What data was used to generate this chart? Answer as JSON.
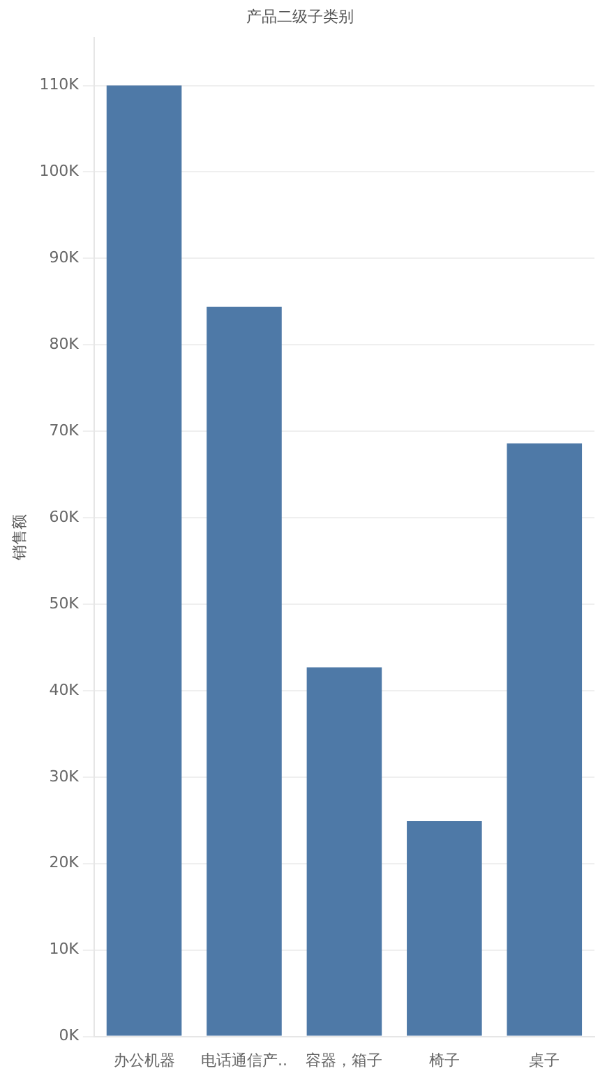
{
  "chart_data": {
    "type": "bar",
    "title": "产品二级子类别",
    "ylabel": "销售额",
    "categories": [
      "办公机器",
      "电话通信产..",
      "容器，箱子",
      "椅子",
      "桌子"
    ],
    "values": [
      110000,
      84400,
      42700,
      24900,
      68600
    ],
    "color": "#4e79a7",
    "ylim": [
      0,
      115500
    ],
    "yticks": [
      {
        "value": 0,
        "label": "0K"
      },
      {
        "value": 10000,
        "label": "10K"
      },
      {
        "value": 20000,
        "label": "20K"
      },
      {
        "value": 30000,
        "label": "30K"
      },
      {
        "value": 40000,
        "label": "40K"
      },
      {
        "value": 50000,
        "label": "50K"
      },
      {
        "value": 60000,
        "label": "60K"
      },
      {
        "value": 70000,
        "label": "70K"
      },
      {
        "value": 80000,
        "label": "80K"
      },
      {
        "value": 90000,
        "label": "90K"
      },
      {
        "value": 100000,
        "label": "100K"
      },
      {
        "value": 110000,
        "label": "110K"
      }
    ],
    "grid": "y",
    "legend": false
  }
}
